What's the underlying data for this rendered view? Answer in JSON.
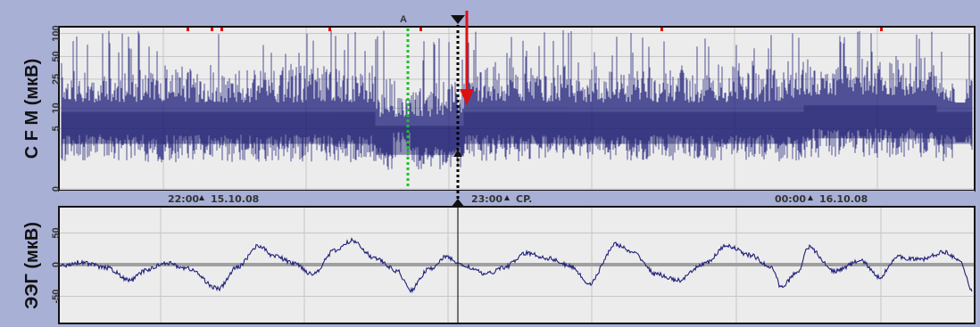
{
  "chart_data": [
    {
      "type": "area",
      "ylabel": "C F M (мкВ)",
      "yscale": "log",
      "yticks": [
        "0",
        "5",
        "10",
        "25",
        "50",
        "100"
      ],
      "ytick_values": [
        0,
        5,
        10,
        25,
        50,
        100
      ],
      "ylim": [
        0,
        110
      ],
      "grid": true,
      "time_labels": [
        {
          "time": "22:00",
          "date": "15.10.08"
        },
        {
          "time": "23:00",
          "date": "CP."
        },
        {
          "time": "00:00",
          "date": "16.10.08"
        }
      ],
      "marker_label": "A",
      "colors": {
        "trace": "#1f1f7a",
        "background": "#ececec",
        "marker_a": "#1fbf2a",
        "cursor": "#000000",
        "arrow": "#dd1111",
        "events": "#e01010"
      }
    },
    {
      "type": "line",
      "ylabel": "ЭЭГ (мкВ)",
      "yticks": [
        "50",
        "0",
        "-50"
      ],
      "ytick_values": [
        50,
        0,
        -50
      ],
      "ylim": [
        -90,
        90
      ],
      "grid": true,
      "colors": {
        "trace": "#1f1f7a",
        "zero_line": "#a0a0a0",
        "background": "#ececec"
      }
    }
  ]
}
